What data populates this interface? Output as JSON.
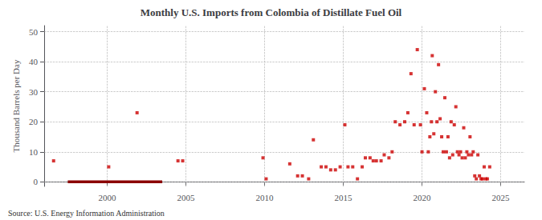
{
  "chart_data": {
    "type": "scatter",
    "title": "Monthly U.S. Imports from Colombia of Distillate Fuel Oil",
    "ylabel": "Thousand Barrels per Day",
    "source": "Source: U.S. Energy Information Administration",
    "color": "#cc0000",
    "marker": "square",
    "grid": true,
    "xlim": [
      1996.0,
      2026.5
    ],
    "ylim": [
      -1.5,
      52
    ],
    "xticks": [
      2000,
      2005,
      2010,
      2015,
      2020,
      2025
    ],
    "yticks": [
      0,
      10,
      20,
      30,
      40,
      50
    ],
    "zero_segments": {
      "color": "#8b0000",
      "segments": [
        [
          1997.5,
          2003.5
        ]
      ]
    },
    "x": [
      1996.6,
      2000.1,
      2001.9,
      2004.5,
      2004.8,
      2009.9,
      2010.1,
      2011.6,
      2012.1,
      2012.4,
      2012.8,
      2013.1,
      2013.6,
      2013.9,
      2014.2,
      2014.5,
      2014.8,
      2015.1,
      2015.3,
      2015.6,
      2015.9,
      2016.2,
      2016.4,
      2016.7,
      2016.9,
      2017.1,
      2017.4,
      2017.6,
      2017.9,
      2018.1,
      2018.3,
      2018.6,
      2018.9,
      2019.1,
      2019.3,
      2019.5,
      2019.7,
      2019.9,
      2020.0,
      2020.15,
      2020.3,
      2020.4,
      2020.5,
      2020.6,
      2020.65,
      2020.75,
      2020.85,
      2020.95,
      2021.05,
      2021.15,
      2021.25,
      2021.35,
      2021.45,
      2021.55,
      2021.65,
      2021.75,
      2021.85,
      2021.95,
      2022.05,
      2022.15,
      2022.25,
      2022.35,
      2022.45,
      2022.55,
      2022.65,
      2022.75,
      2022.85,
      2022.95,
      2023.05,
      2023.15,
      2023.25,
      2023.35,
      2023.45,
      2023.55,
      2023.65,
      2023.75,
      2023.85,
      2023.95,
      2024.05,
      2024.15,
      2024.3
    ],
    "values": [
      7,
      5,
      23,
      7,
      7,
      8,
      1,
      6,
      2,
      2,
      1,
      14,
      5,
      5,
      4,
      4,
      5,
      19,
      5,
      5,
      1,
      5,
      8,
      8,
      7,
      7,
      7,
      9,
      8,
      10,
      20,
      19,
      20,
      23,
      36,
      19,
      44,
      19,
      10,
      31,
      23,
      10,
      15,
      20,
      42,
      16,
      30,
      20,
      39,
      21,
      15,
      10,
      28,
      10,
      15,
      8,
      20,
      9,
      19,
      25,
      10,
      9,
      10,
      8,
      18,
      8,
      10,
      9,
      15,
      9,
      10,
      2,
      1,
      9,
      2,
      1,
      1,
      5,
      1,
      1,
      5
    ]
  }
}
